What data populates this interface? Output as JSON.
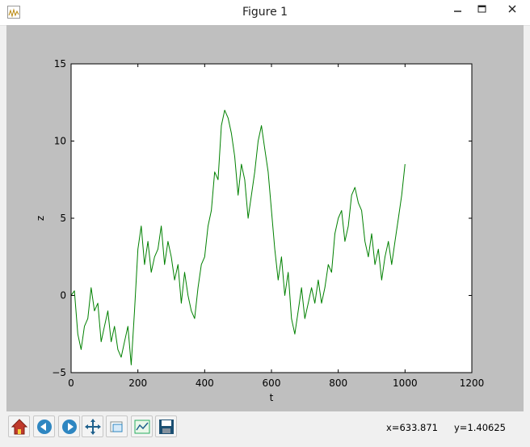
{
  "window": {
    "title": "Figure 1",
    "icons": {
      "app": "matplotlib-figure-icon",
      "minimize": "minimize-icon",
      "maximize": "maximize-icon",
      "close": "close-icon"
    }
  },
  "toolbar": {
    "buttons": [
      {
        "name": "home",
        "icon": "home-icon"
      },
      {
        "name": "back",
        "icon": "back-arrow-icon"
      },
      {
        "name": "forward",
        "icon": "forward-arrow-icon"
      },
      {
        "name": "pan",
        "icon": "pan-icon"
      },
      {
        "name": "zoom",
        "icon": "zoom-icon"
      },
      {
        "name": "configure-subplots",
        "icon": "subplots-icon"
      },
      {
        "name": "save",
        "icon": "save-icon"
      }
    ],
    "coord_x": "x=633.871",
    "coord_y": "y=1.40625"
  },
  "colors": {
    "canvas_bg": "#bfbfbf",
    "axes_bg": "#ffffff",
    "line": "#008000"
  },
  "chart_data": {
    "type": "line",
    "title": "",
    "xlabel": "t",
    "ylabel": "z",
    "xlim": [
      0,
      1200
    ],
    "ylim": [
      -5,
      15
    ],
    "xticks": [
      "0",
      "200",
      "400",
      "600",
      "800",
      "1000",
      "1200"
    ],
    "yticks": [
      "15",
      "10",
      "5",
      "0",
      "−5"
    ],
    "grid": false,
    "series": [
      {
        "color": "#008000",
        "x": [
          0,
          10,
          20,
          30,
          40,
          50,
          60,
          70,
          80,
          90,
          100,
          110,
          120,
          130,
          140,
          150,
          160,
          170,
          180,
          190,
          200,
          210,
          220,
          230,
          240,
          250,
          260,
          270,
          280,
          290,
          300,
          310,
          320,
          330,
          340,
          350,
          360,
          370,
          380,
          390,
          400,
          410,
          420,
          430,
          440,
          450,
          460,
          470,
          480,
          490,
          500,
          510,
          520,
          530,
          540,
          550,
          560,
          570,
          580,
          590,
          600,
          610,
          620,
          630,
          640,
          650,
          660,
          670,
          680,
          690,
          700,
          710,
          720,
          730,
          740,
          750,
          760,
          770,
          780,
          790,
          800,
          810,
          820,
          830,
          840,
          850,
          860,
          870,
          880,
          890,
          900,
          910,
          920,
          930,
          940,
          950,
          960,
          970,
          980,
          990,
          1000
        ],
        "y": [
          0.0,
          0.3,
          -2.5,
          -3.5,
          -2.0,
          -1.5,
          0.5,
          -1.0,
          -0.5,
          -3.0,
          -2.0,
          -1.0,
          -3.0,
          -2.0,
          -3.5,
          -4.0,
          -3.0,
          -2.0,
          -4.5,
          -1.0,
          3.0,
          4.5,
          2.0,
          3.5,
          1.5,
          2.5,
          3.0,
          4.5,
          2.0,
          3.5,
          2.5,
          1.0,
          2.0,
          -0.5,
          1.5,
          0.0,
          -1.0,
          -1.5,
          0.5,
          2.0,
          2.5,
          4.5,
          5.5,
          8.0,
          7.5,
          11.0,
          12.0,
          11.5,
          10.5,
          9.0,
          6.5,
          8.5,
          7.5,
          5.0,
          6.5,
          8.0,
          10.0,
          11.0,
          9.5,
          8.0,
          5.5,
          3.0,
          1.0,
          2.5,
          0.0,
          1.5,
          -1.5,
          -2.5,
          -1.0,
          0.5,
          -1.5,
          -0.5,
          0.5,
          -0.5,
          1.0,
          -0.5,
          0.5,
          2.0,
          1.5,
          4.0,
          5.0,
          5.5,
          3.5,
          4.5,
          6.5,
          7.0,
          6.0,
          5.5,
          3.5,
          2.5,
          4.0,
          2.0,
          3.0,
          1.0,
          2.5,
          3.5,
          2.0,
          3.5,
          5.0,
          6.5,
          8.5
        ]
      }
    ]
  }
}
